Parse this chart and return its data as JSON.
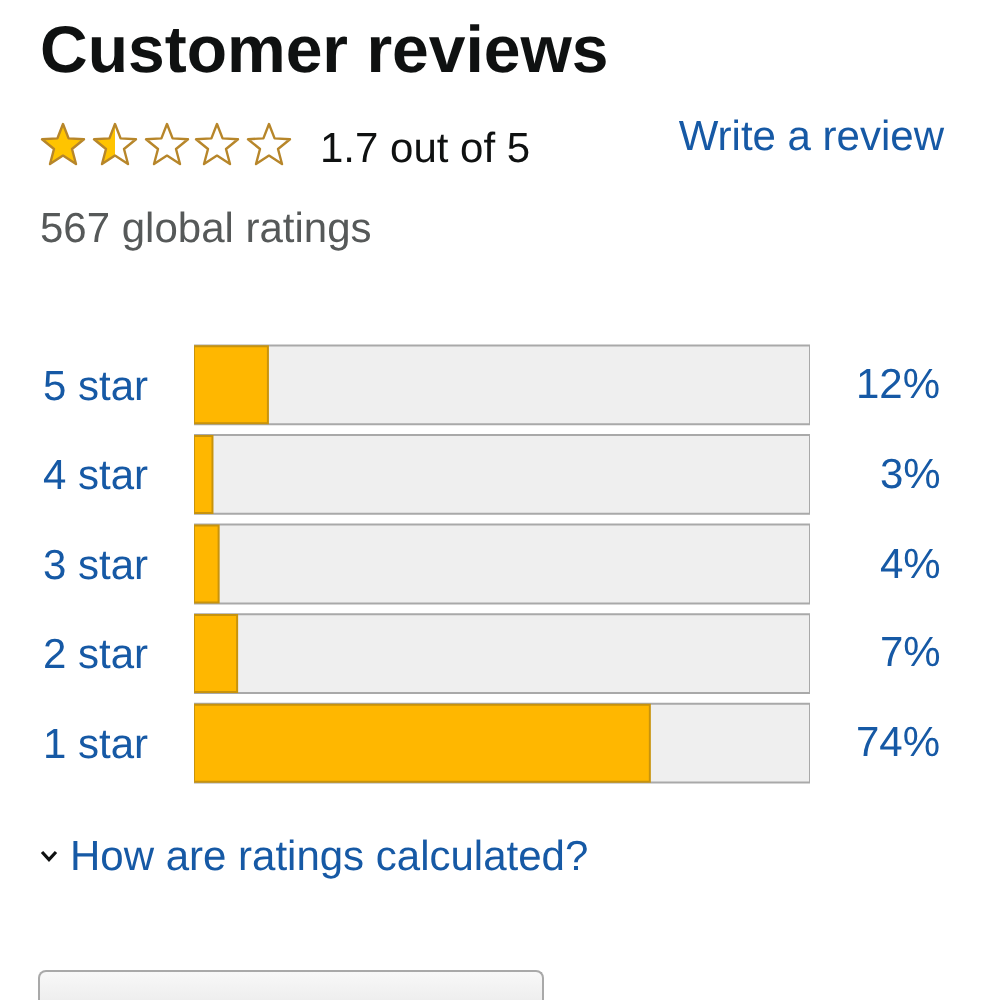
{
  "chart_data": {
    "type": "bar",
    "orientation": "horizontal",
    "title": "Customer reviews",
    "annotations": [
      "1.7 out of 5",
      "Write a review",
      "567 global ratings",
      "How are ratings calculated?"
    ],
    "categories": [
      "5 star",
      "4 star",
      "3 star",
      "2 star",
      "1 star"
    ],
    "values": [
      12,
      3,
      4,
      7,
      74
    ],
    "color": "#ffb700",
    "value_labels": [
      "12%",
      "3%",
      "4%",
      "7%",
      "74%"
    ],
    "xlim": [
      0,
      100
    ],
    "tick_labels": "y"
  }
}
